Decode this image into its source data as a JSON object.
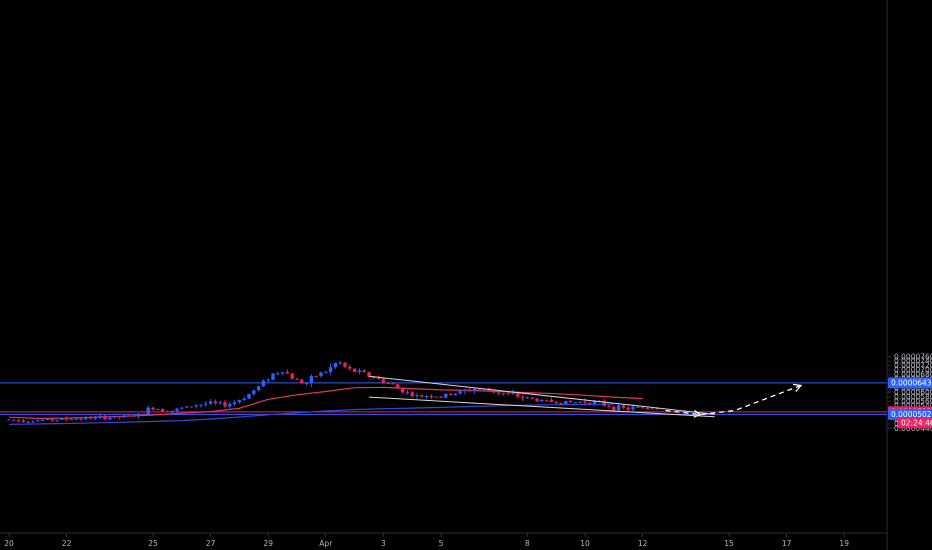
{
  "chart_data": {
    "type": "candlestick",
    "title": "",
    "xlabel": "",
    "ylabel": "",
    "ylim": [
      4.36e-05,
      7.88e-05
    ],
    "grid": false,
    "x_ticks": [
      {
        "label": "20",
        "day": 20
      },
      {
        "label": "22",
        "day": 22
      },
      {
        "label": "25",
        "day": 25
      },
      {
        "label": "27",
        "day": 27
      },
      {
        "label": "29",
        "day": 29
      },
      {
        "label": "Apr",
        "day": 31
      },
      {
        "label": "3",
        "day": 33
      },
      {
        "label": "5",
        "day": 35
      },
      {
        "label": "8",
        "day": 38
      },
      {
        "label": "10",
        "day": 40
      },
      {
        "label": "12",
        "day": 42
      },
      {
        "label": "15",
        "day": 45
      },
      {
        "label": "17",
        "day": 47
      },
      {
        "label": "19",
        "day": 49
      }
    ],
    "y_ticks": [
      "0.00004400",
      "0.00004600",
      "0.00004800",
      "0.00005000",
      "0.00005200",
      "0.00005400",
      "0.00005600",
      "0.00005800",
      "0.00006000",
      "0.00006200",
      "0.00006400",
      "0.00006600",
      "0.00006800",
      "0.00007000",
      "0.00007200",
      "0.00007400",
      "0.00007600"
    ],
    "y_tick_values": [
      4.4e-05,
      4.6e-05,
      4.8e-05,
      5e-05,
      5.2e-05,
      5.4e-05,
      5.6e-05,
      5.8e-05,
      6e-05,
      6.2e-05,
      6.4e-05,
      6.6e-05,
      6.8e-05,
      7e-05,
      7.2e-05,
      7.4e-05,
      7.6e-05
    ],
    "horizontal_levels": [
      {
        "label": "0.00006435",
        "value": 6.435e-05,
        "color": "#2962ff"
      },
      {
        "label": "0.00005137",
        "value": 5.137e-05,
        "color": "#e91e63"
      },
      {
        "label": "0.00005028",
        "value": 5.028e-05,
        "color": "#2962ff"
      }
    ],
    "countdown": "02:24:46",
    "price_path": [
      [
        20.0,
        4.79e-05
      ],
      [
        20.8,
        4.75e-05
      ],
      [
        21.6,
        4.8e-05
      ],
      [
        22.4,
        4.85e-05
      ],
      [
        23.2,
        4.88e-05
      ],
      [
        24.0,
        4.92e-05
      ],
      [
        24.6,
        5e-05
      ],
      [
        24.9,
        5.35e-05
      ],
      [
        25.3,
        5.25e-05
      ],
      [
        25.7,
        5.2e-05
      ],
      [
        26.1,
        5.33e-05
      ],
      [
        26.5,
        5.45e-05
      ],
      [
        27.0,
        5.53e-05
      ],
      [
        27.5,
        5.45e-05
      ],
      [
        27.9,
        5.6e-05
      ],
      [
        28.3,
        5.9e-05
      ],
      [
        28.7,
        6.3e-05
      ],
      [
        29.1,
        6.8e-05
      ],
      [
        29.5,
        7e-05
      ],
      [
        29.9,
        6.6e-05
      ],
      [
        30.3,
        6.4e-05
      ],
      [
        30.7,
        6.8e-05
      ],
      [
        31.1,
        7e-05
      ],
      [
        31.4,
        7.4e-05
      ],
      [
        31.8,
        7e-05
      ],
      [
        32.2,
        6.9e-05
      ],
      [
        32.6,
        6.7e-05
      ],
      [
        33.0,
        6.5e-05
      ],
      [
        33.4,
        6.3e-05
      ],
      [
        33.8,
        6e-05
      ],
      [
        34.2,
        5.8e-05
      ],
      [
        34.6,
        5.9e-05
      ],
      [
        35.0,
        5.8e-05
      ],
      [
        35.4,
        5.95e-05
      ],
      [
        35.8,
        6.05e-05
      ],
      [
        36.2,
        6.2e-05
      ],
      [
        36.6,
        6.1e-05
      ],
      [
        37.0,
        6e-05
      ],
      [
        37.4,
        5.9e-05
      ],
      [
        37.8,
        5.8e-05
      ],
      [
        38.2,
        5.7e-05
      ],
      [
        38.6,
        5.62e-05
      ],
      [
        39.0,
        5.6e-05
      ],
      [
        39.4,
        5.55e-05
      ],
      [
        39.8,
        5.58e-05
      ],
      [
        40.2,
        5.62e-05
      ],
      [
        40.6,
        5.48e-05
      ],
      [
        41.0,
        5.35e-05
      ],
      [
        41.4,
        5.28e-05
      ],
      [
        41.8,
        5.32e-05
      ],
      [
        42.2,
        5.32e-05
      ],
      [
        42.6,
        5.33e-05
      ]
    ],
    "ma_fast": [
      [
        20.0,
        4.9e-05
      ],
      [
        21.0,
        4.85e-05
      ],
      [
        22.0,
        4.86e-05
      ],
      [
        23.0,
        4.9e-05
      ],
      [
        24.0,
        4.94e-05
      ],
      [
        25.0,
        5e-05
      ],
      [
        26.0,
        5.08e-05
      ],
      [
        27.0,
        5.15e-05
      ],
      [
        28.0,
        5.3e-05
      ],
      [
        28.5,
        5.5e-05
      ],
      [
        29.0,
        5.7e-05
      ],
      [
        30.0,
        5.9e-05
      ],
      [
        31.0,
        6.05e-05
      ],
      [
        32.0,
        6.22e-05
      ],
      [
        33.0,
        6.23e-05
      ],
      [
        34.0,
        6.18e-05
      ],
      [
        35.0,
        6.12e-05
      ],
      [
        36.0,
        6.1e-05
      ],
      [
        37.0,
        6.05e-05
      ],
      [
        38.0,
        6e-05
      ],
      [
        39.0,
        5.95e-05
      ],
      [
        40.0,
        5.88e-05
      ],
      [
        41.0,
        5.8e-05
      ],
      [
        42.0,
        5.73e-05
      ]
    ],
    "ma_slow": [
      [
        20.0,
        4.58e-05
      ],
      [
        22.0,
        4.62e-05
      ],
      [
        24.0,
        4.68e-05
      ],
      [
        26.0,
        4.75e-05
      ],
      [
        27.0,
        4.82e-05
      ],
      [
        28.0,
        4.91e-05
      ],
      [
        29.0,
        5.01e-05
      ],
      [
        30.0,
        5.1e-05
      ],
      [
        31.0,
        5.18e-05
      ],
      [
        32.0,
        5.24e-05
      ],
      [
        33.0,
        5.28e-05
      ],
      [
        34.0,
        5.31e-05
      ],
      [
        35.0,
        5.34e-05
      ],
      [
        36.0,
        5.38e-05
      ],
      [
        37.0,
        5.41e-05
      ],
      [
        38.0,
        5.44e-05
      ],
      [
        39.0,
        5.46e-05
      ],
      [
        40.0,
        5.47e-05
      ],
      [
        41.0,
        5.48e-05
      ]
    ],
    "wedge_upper": [
      [
        32.5,
        6.73e-05
      ],
      [
        44.5,
        5.03e-05
      ]
    ],
    "wedge_lower": [
      [
        32.5,
        5.8e-05
      ],
      [
        44.5,
        4.92e-05
      ]
    ],
    "projection_arrow": [
      [
        42.8,
        5.2e-05
      ],
      [
        44.0,
        5.02e-05
      ],
      [
        45.2,
        5.2e-05
      ],
      [
        47.5,
        6.32e-05
      ]
    ],
    "colors": {
      "up": "#2962ff",
      "down": "#e91e63",
      "ma_fast": "#e0356f",
      "ma_slow": "#3a44d8",
      "wedge": "#d8d8d8",
      "arrow": "#ffffff"
    }
  }
}
